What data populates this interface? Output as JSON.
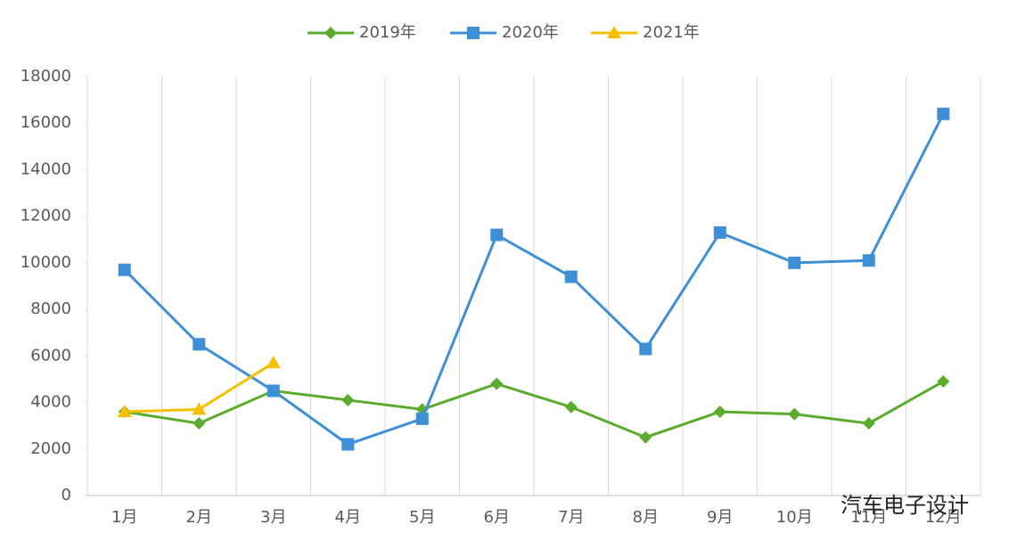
{
  "chart_data": {
    "type": "line",
    "categories": [
      "1月",
      "2月",
      "3月",
      "4月",
      "5月",
      "6月",
      "7月",
      "8月",
      "9月",
      "10月",
      "11月",
      "12月"
    ],
    "series": [
      {
        "name": "2019年",
        "color": "#5aab2e",
        "marker": "diamond",
        "values": [
          3600,
          3100,
          4500,
          4100,
          3700,
          4800,
          3800,
          2500,
          3600,
          3500,
          3100,
          4900
        ]
      },
      {
        "name": "2020年",
        "color": "#3f8fd6",
        "marker": "square",
        "values": [
          9700,
          6500,
          4500,
          2200,
          3300,
          11200,
          9400,
          6300,
          11300,
          10000,
          10100,
          16400
        ]
      },
      {
        "name": "2021年",
        "color": "#f5c000",
        "marker": "triangle",
        "values": [
          3600,
          3700,
          5700,
          null,
          null,
          null,
          null,
          null,
          null,
          null,
          null,
          null
        ]
      }
    ],
    "ylim": [
      0,
      18000
    ],
    "yticks": [
      0,
      2000,
      4000,
      6000,
      8000,
      10000,
      12000,
      14000,
      16000,
      18000
    ],
    "legend": "top",
    "watermark": "汽车电子设计"
  }
}
